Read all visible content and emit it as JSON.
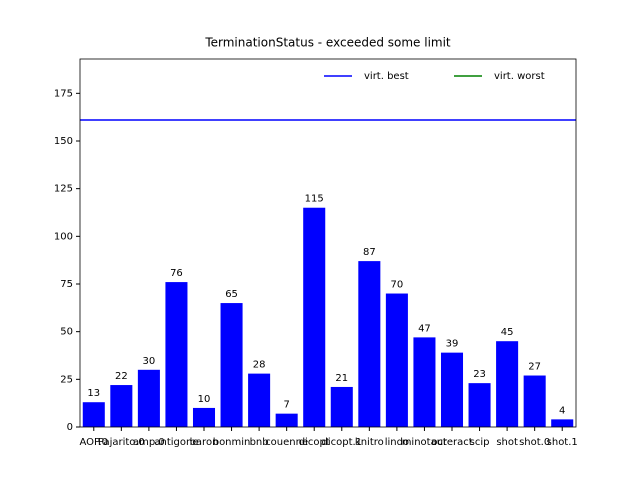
{
  "chart_data": {
    "type": "bar",
    "title": "TerminationStatus - exceeded some limit",
    "categories": [
      "AOP.0",
      "Pajarito.0",
      "amp.0",
      "antigone",
      "baron",
      "bonmin",
      "bnb",
      "couenne",
      "dicopt",
      "dicopt.1",
      "knitro",
      "lindo",
      "minotaur",
      "octeract",
      "scip",
      "shot",
      "shot.0",
      "shot.1"
    ],
    "values": [
      13,
      22,
      30,
      76,
      10,
      65,
      28,
      7,
      115,
      21,
      87,
      70,
      47,
      39,
      23,
      45,
      27,
      4
    ],
    "color": "#0000ff",
    "ylim": [
      0,
      193
    ],
    "yticks": [
      0,
      25,
      50,
      75,
      100,
      125,
      150,
      175
    ],
    "reference_lines": [
      {
        "name": "virt. best",
        "color": "#0000ff",
        "value": 161
      },
      {
        "name": "virt. worst",
        "color": "#008000",
        "value": null
      }
    ],
    "legend": "upper right"
  }
}
